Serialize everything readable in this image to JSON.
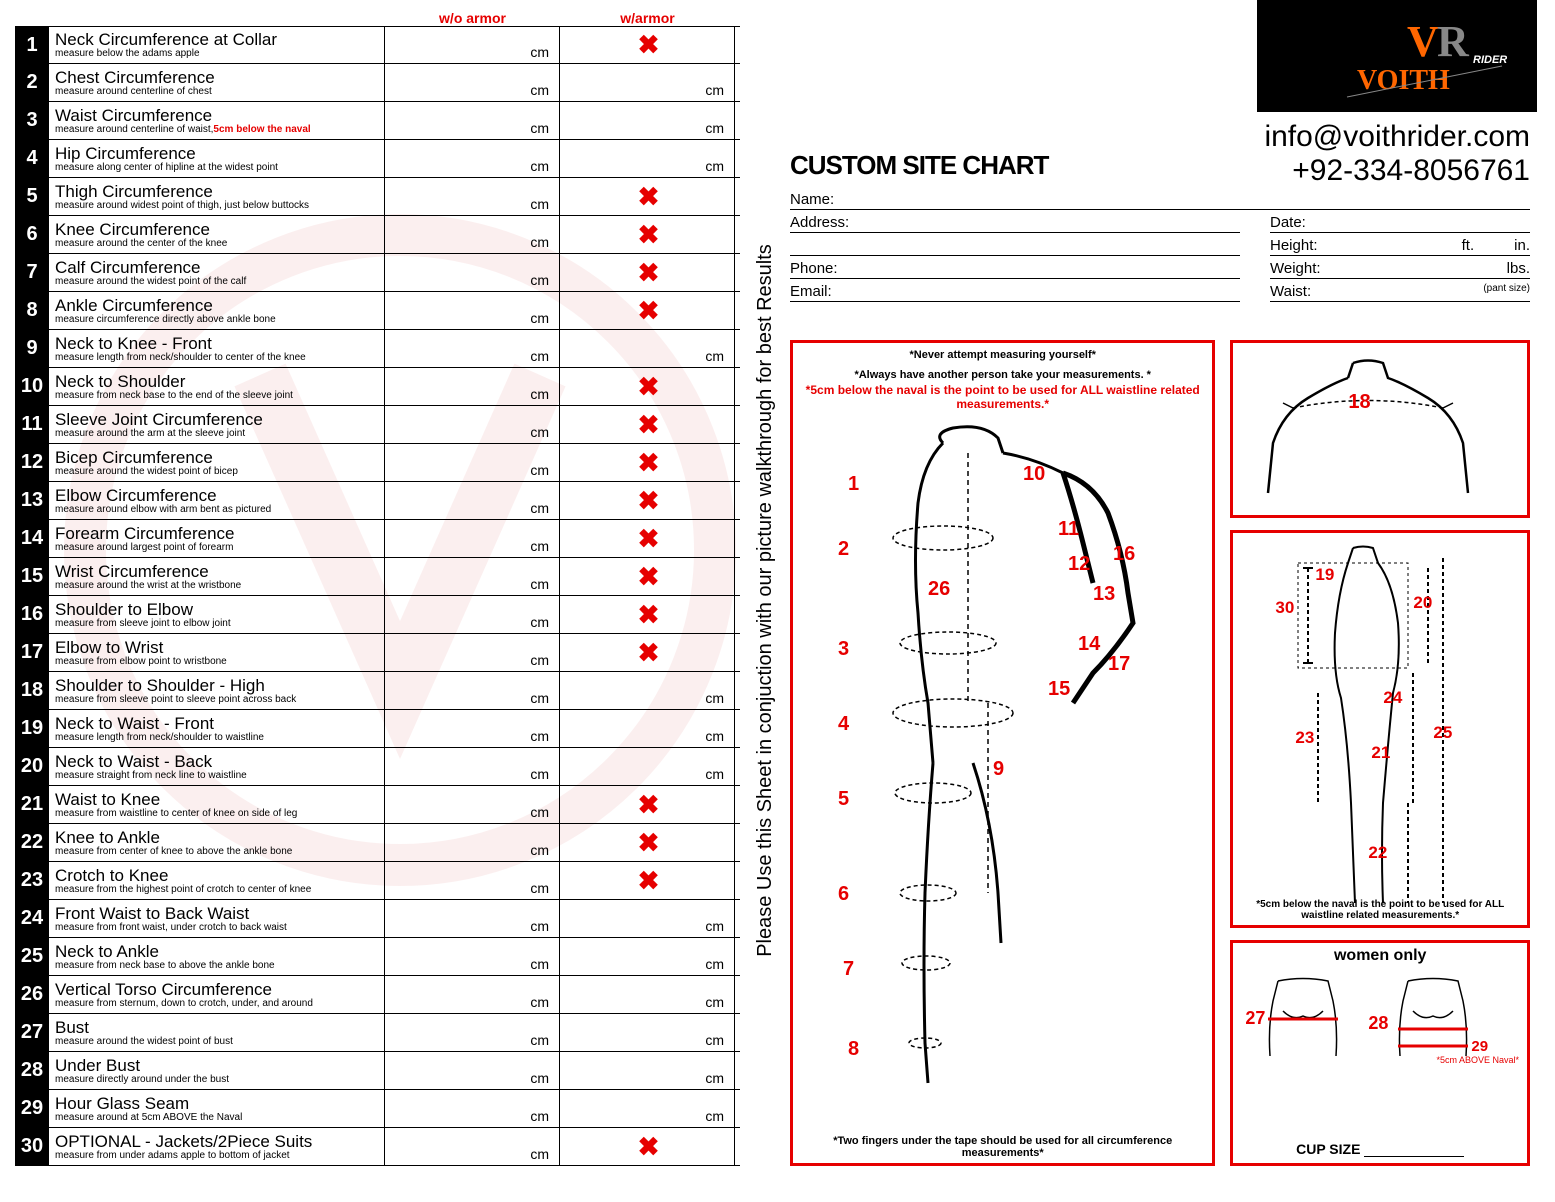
{
  "header": {
    "col1": "w/o armor",
    "col2": "w/armor"
  },
  "rows": [
    {
      "n": "1",
      "title": "Neck Circumference at Collar",
      "sub": "measure below the adams apple",
      "c1": "cm",
      "c2": "X"
    },
    {
      "n": "2",
      "title": "Chest Circumference",
      "sub": "measure around centerline of chest",
      "c1": "cm",
      "c2": "cm"
    },
    {
      "n": "3",
      "title": "Waist Circumference",
      "sub": "measure around centerline of waist,",
      "subhl": "5cm below the naval",
      "c1": "cm",
      "c2": "cm"
    },
    {
      "n": "4",
      "title": "Hip Circumference",
      "sub": "measure along center of hipline at the widest point",
      "c1": "cm",
      "c2": "cm"
    },
    {
      "n": "5",
      "title": "Thigh Circumference",
      "sub": "measure around widest point of thigh, just below buttocks",
      "c1": "cm",
      "c2": "X"
    },
    {
      "n": "6",
      "title": "Knee Circumference",
      "sub": "measure around the center of the knee",
      "c1": "cm",
      "c2": "X"
    },
    {
      "n": "7",
      "title": "Calf Circumference",
      "sub": "measure around the widest point of the calf",
      "c1": "cm",
      "c2": "X"
    },
    {
      "n": "8",
      "title": "Ankle Circumference",
      "sub": "measure circumference directly above ankle bone",
      "c1": "cm",
      "c2": "X"
    },
    {
      "n": "9",
      "title": "Neck to Knee - Front",
      "sub": "measure length from neck/shoulder to center of the knee",
      "c1": "cm",
      "c2": "cm"
    },
    {
      "n": "10",
      "title": "Neck to Shoulder",
      "sub": "measure from neck base to the end of the sleeve joint",
      "c1": "cm",
      "c2": "X"
    },
    {
      "n": "11",
      "title": "Sleeve Joint Circumference",
      "sub": "measure around the arm at the sleeve joint",
      "c1": "cm",
      "c2": "X"
    },
    {
      "n": "12",
      "title": "Bicep Circumference",
      "sub": "measure around the widest point of bicep",
      "c1": "cm",
      "c2": "X"
    },
    {
      "n": "13",
      "title": "Elbow Circumference",
      "sub": "measure around elbow with arm bent as pictured",
      "c1": "cm",
      "c2": "X"
    },
    {
      "n": "14",
      "title": "Forearm Circumference",
      "sub": "measure around largest point of forearm",
      "c1": "cm",
      "c2": "X"
    },
    {
      "n": "15",
      "title": "Wrist Circumference",
      "sub": "measure around the wrist at the wristbone",
      "c1": "cm",
      "c2": "X"
    },
    {
      "n": "16",
      "title": "Shoulder to Elbow",
      "sub": "measure from sleeve joint to elbow joint",
      "c1": "cm",
      "c2": "X"
    },
    {
      "n": "17",
      "title": "Elbow to Wrist",
      "sub": "measure from elbow point to wristbone",
      "c1": "cm",
      "c2": "X"
    },
    {
      "n": "18",
      "title": "Shoulder to Shoulder - High",
      "sub": "measure from sleeve point to sleeve point across back",
      "c1": "cm",
      "c2": "cm"
    },
    {
      "n": "19",
      "title": "Neck to Waist - Front",
      "sub": "measure length from neck/shoulder to waistline",
      "c1": "cm",
      "c2": "cm"
    },
    {
      "n": "20",
      "title": "Neck to Waist - Back",
      "sub": "measure straight from neck line to waistline",
      "c1": "cm",
      "c2": "cm"
    },
    {
      "n": "21",
      "title": "Waist to Knee",
      "sub": "measure from waistline to center of knee on side of leg",
      "c1": "cm",
      "c2": "X"
    },
    {
      "n": "22",
      "title": "Knee to Ankle",
      "sub": "measure from center of knee to above the ankle bone",
      "c1": "cm",
      "c2": "X"
    },
    {
      "n": "23",
      "title": "Crotch to Knee",
      "sub": "measure from the highest point of crotch to center of knee",
      "c1": "cm",
      "c2": "X"
    },
    {
      "n": "24",
      "title": "Front Waist to Back Waist",
      "sub": "measure from front waist, under crotch to back waist",
      "c1": "cm",
      "c2": "cm"
    },
    {
      "n": "25",
      "title": "Neck to Ankle",
      "sub": "measure from neck base to above the ankle bone",
      "c1": "cm",
      "c2": "cm"
    },
    {
      "n": "26",
      "title": "Vertical Torso Circumference",
      "sub": "measure from sternum, down to crotch, under, and around",
      "c1": "cm",
      "c2": "cm"
    },
    {
      "n": "27",
      "title": "Bust",
      "sub": "measure around the widest point of bust",
      "c1": "cm",
      "c2": "cm"
    },
    {
      "n": "28",
      "title": "Under Bust",
      "sub": "measure directly around under the bust",
      "c1": "cm",
      "c2": "cm"
    },
    {
      "n": "29",
      "title": "Hour Glass Seam",
      "sub": "measure around at 5cm ABOVE the Naval",
      "c1": "cm",
      "c2": "cm"
    },
    {
      "n": "30",
      "title": "OPTIONAL - Jackets/2Piece Suits",
      "sub": "measure from under adams apple to bottom of jacket",
      "c1": "cm",
      "c2": "X"
    }
  ],
  "logo": {
    "brand": "VOITH",
    "tag": "RIDERS",
    "vr": "VR"
  },
  "contact": {
    "email": "info@voithrider.com",
    "phone": "+92-334-8056761"
  },
  "vertical_text": "Please Use this  Sheet in conjuction with our picture walkthrough for best Results",
  "chart_title": "CUSTOM SITE CHART",
  "form": {
    "name": "Name:",
    "address": "Address:",
    "phone": "Phone:",
    "email": "Email:",
    "date": "Date:",
    "height": "Height:",
    "ft": "ft.",
    "in": "in.",
    "weight": "Weight:",
    "lbs": "lbs.",
    "waist": "Waist:",
    "pant": "(pant size)"
  },
  "dia": {
    "warn1": "*Never attempt measuring yourself*",
    "warn2": "*Always have another person take your measurements. *",
    "warn_red": "*5cm below the naval is the point to be used for ALL waistline related measurements.*",
    "foot": "*Two fingers under the tape should be used for all circumference measurements*",
    "leg_note": "*5cm below the naval is the point to be used for ALL waistline related measurements.*",
    "women": "women only",
    "cup": "CUP SIZE",
    "above": "*5cm ABOVE Naval*"
  },
  "colors": {
    "red": "#e60000",
    "orange": "#ff6600",
    "black": "#000000"
  }
}
